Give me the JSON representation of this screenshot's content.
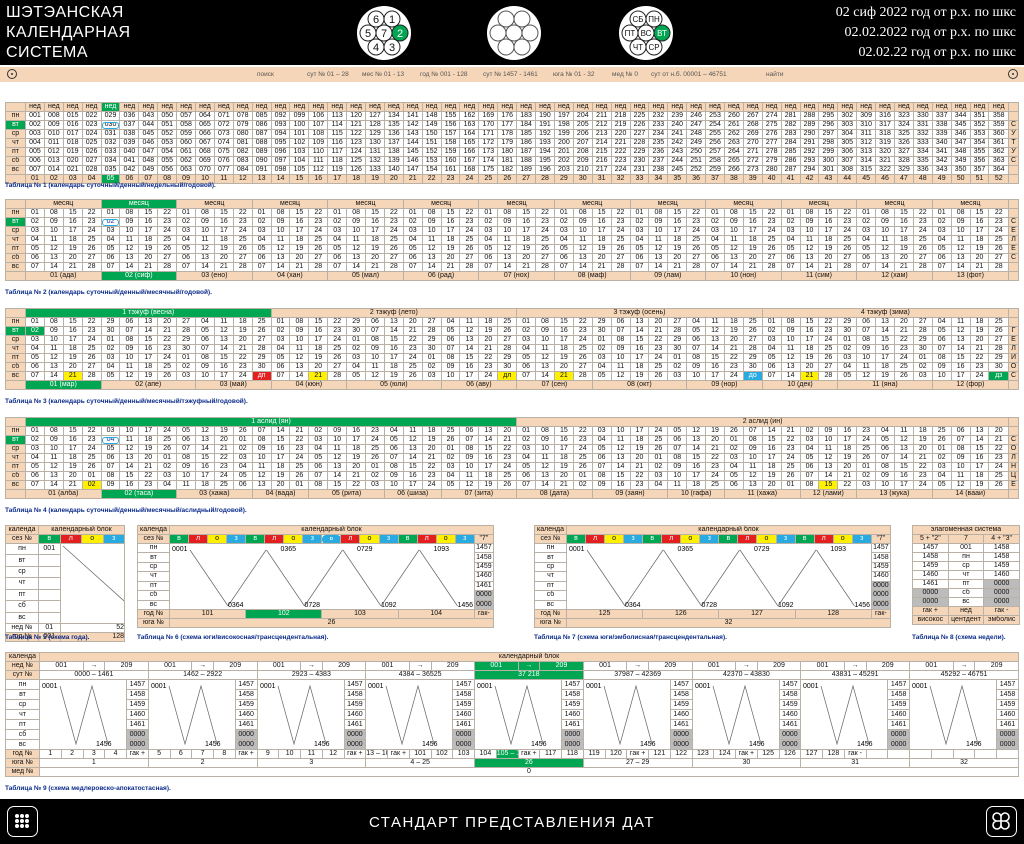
{
  "header": {
    "title_lines": [
      "ШЭТЭАНСКАЯ",
      "КАЛЕНДАРНАЯ",
      "СИСТЕМА"
    ],
    "date_lines": [
      "02 сиф 2022 год от р.х. по шкс",
      "02.02.2022 год от р.х. по шкс",
      "02.02.22 год от р.х. по шкс"
    ],
    "dial_left": [
      "6",
      "1",
      "5",
      "7",
      "2",
      "4",
      "3"
    ],
    "dial_right": [
      "СБ",
      "ПН",
      "ПТ",
      "ВС",
      "ВТ",
      "ЧТ",
      "СР"
    ]
  },
  "search": {
    "labels": [
      "поиск",
      "сут № 01 – 28",
      "мес № 01 - 13",
      "год № 001 - 128",
      "сут № 1457 - 1461",
      "юга № 01 - 32",
      "мед № 0",
      "сут от н.б. 00001 – 46751",
      "найти"
    ]
  },
  "days": [
    "пн",
    "вт",
    "ср",
    "чт",
    "пт",
    "сб",
    "вс"
  ],
  "t1": {
    "head": "нед",
    "side": [
      "",
      "С",
      "У",
      "Т",
      "У",
      "С"
    ],
    "caption": "Таблица № 1 (календарь суточный/денный/недельный/годовой)."
  },
  "t2": {
    "month": "месяц",
    "months": [
      "01 (ада)",
      "02 (сиф)",
      "03 (ено)",
      "04 (хан)",
      "05 (мал)",
      "06 (рад)",
      "07 (нох)",
      "08 (маф)",
      "09 (лам)",
      "10 (нон)",
      "11 (сим)",
      "12 (хам)",
      "13 (фот)"
    ],
    "side": [
      "",
      "С",
      "Е",
      "Л",
      "Е",
      "С"
    ],
    "caption": "Таблица № 2 (календарь суточный/денный/месячный/годовой)."
  },
  "t3": {
    "seasons": [
      "1 тэжуф (весна)",
      "2 тэжуф (лето)",
      "3 тэжуф (осень)",
      "4 тэжуф (зима)"
    ],
    "months": [
      "01 (мар)",
      "02 (апе)",
      "03 (май)",
      "04 (кюн)",
      "05 (юли)",
      "06 (аву)",
      "07 (сен)",
      "08 (окт)",
      "09 (нор)",
      "10 (дек)",
      "11 (яна)",
      "12 (фор)"
    ],
    "marks": [
      "дп",
      "дл",
      "до",
      "дз"
    ],
    "side": [
      "Г",
      "Е",
      "Л",
      "И",
      "О",
      "С"
    ],
    "caption": "Таблица № 3 (календарь суточный/денный/месячный/тэжуфный/годовой)."
  },
  "t4": {
    "halves": [
      "1 аслид (ян)",
      "2 аслид (ин)"
    ],
    "months": [
      "01 (алба)",
      "02 (таса)",
      "03 (хажа)",
      "04 (вада)",
      "05 (рита)",
      "06 (шиза)",
      "07 (зита)",
      "08 (дата)",
      "09 (заян)",
      "10 (гафа)",
      "11 (хажа)",
      "12 (лами)",
      "13 (жука)",
      "14 (вааи)"
    ],
    "side": [
      "С",
      "О",
      "Л",
      "Н",
      "Ц",
      "Е"
    ],
    "caption": "Таблица № 4 (календарь суточный/денный/месячный/аслидный/годовой)."
  },
  "small": {
    "kalenda": "календа",
    "block": "календарный блок",
    "sez": "сез №",
    "ned": "нед №",
    "god": "год №",
    "yuga": "юга №",
    "med": "мед №",
    "sut": "сут №",
    "seasons": [
      "в",
      "л",
      "о",
      "з"
    ],
    "quote": "\"7\"",
    "gak": "гак-",
    "gakp": "гак +"
  },
  "t5": {
    "nums": [
      "001",
      "364"
    ],
    "ned": [
      "01",
      "52"
    ],
    "god": [
      "001",
      "128"
    ],
    "caption": "Таблица № 5 (схема года)."
  },
  "t6": {
    "tops": [
      "0001",
      "0365",
      "0729",
      "1093"
    ],
    "bots": [
      "0364",
      "0728",
      "1092",
      "1456"
    ],
    "right": [
      "1457",
      "1458",
      "1459",
      "1460",
      "1461",
      "0000",
      "0000"
    ],
    "god": [
      "101",
      "102",
      "103",
      "104",
      "гак-"
    ],
    "yuga": "26",
    "caption": "Таблица № 6 (схема юги/високосная/трансцендентальная)."
  },
  "t7": {
    "tops": [
      "0001",
      "0365",
      "0729",
      "1093"
    ],
    "bots": [
      "0364",
      "0728",
      "1092",
      "1456"
    ],
    "right": [
      "1457",
      "1458",
      "1459",
      "1460",
      "0000",
      "0000",
      "0000"
    ],
    "god": [
      "125",
      "126",
      "127",
      "128",
      "гак-"
    ],
    "yuga": "32",
    "caption": "Таблица № 7 (схема юги/эмболисная/трансцендентальная)."
  },
  "t8": {
    "title": "элагоменная система",
    "heads": [
      "5 + \"2\"",
      "7",
      "4 + \"3\""
    ],
    "rows": [
      [
        "1457",
        "001",
        "1458"
      ],
      [
        "1458",
        "пн",
        "1458"
      ],
      [
        "1459",
        "ср",
        "1459"
      ],
      [
        "1460",
        "чт",
        "1460"
      ],
      [
        "1461",
        "пт",
        "0000"
      ],
      [
        "0000",
        "сб",
        "0000"
      ],
      [
        "0000",
        "вс",
        "0000"
      ]
    ],
    "foot": [
      [
        "гак +",
        "нед",
        "гак -"
      ],
      [
        "високос",
        "центдент",
        "эмболис"
      ]
    ],
    "caption": "Таблица № 8 (схема недели)."
  },
  "t9": {
    "ned": [
      "001",
      "209",
      "001",
      "209",
      "001",
      "209",
      "001",
      "209",
      "001",
      "209",
      "001",
      "209",
      "001",
      "209",
      "001",
      "209",
      "001",
      "209"
    ],
    "sut": [
      "0000 – 1461",
      "1462 – 2922",
      "2923 – 4383",
      "4384 – 36525",
      "37 218",
      "37987 – 42369",
      "42370 – 43830",
      "43831 – 45291",
      "45292 – 46751"
    ],
    "tops": [
      "0001",
      "1457",
      "1458",
      "1459",
      "1460",
      "1461",
      "0000",
      "1456"
    ],
    "god": [
      "1",
      "2",
      "3",
      "4",
      "гак +",
      "5",
      "6",
      "7",
      "8",
      "гак +",
      "9",
      "10",
      "11",
      "12",
      "гак +",
      "13 – 100",
      "гак +",
      "101",
      "102",
      "103",
      "104",
      "105 – 116",
      "гак +",
      "117",
      "118",
      "119",
      "120",
      "гак +",
      "121",
      "122",
      "123",
      "124",
      "гак +",
      "125",
      "126",
      "127",
      "128",
      "гак -"
    ],
    "yuga": [
      "1",
      "2",
      "3",
      "4 – 25",
      "26",
      "27 – 29",
      "30",
      "31",
      "32"
    ],
    "med": "0",
    "caption": "Таблица № 9 (схема медлеровско-апокатостасная)."
  },
  "footer": {
    "title": "СТАНДАРТ  ПРЕДСТАВЛЕНИЯ  ДАТ"
  }
}
